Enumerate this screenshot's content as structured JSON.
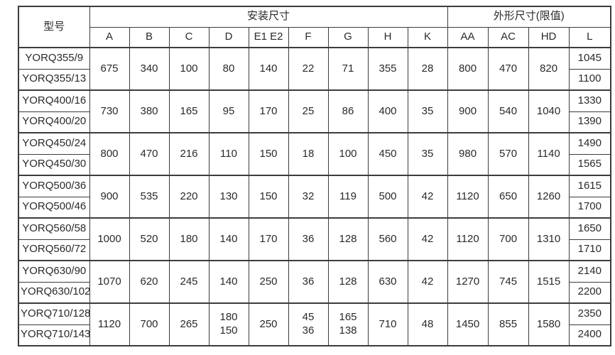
{
  "table": {
    "header": {
      "model_label": "型号",
      "install_group_label": "安装尺寸",
      "outline_group_label": "外形尺寸(限值)",
      "install_columns": [
        "A",
        "B",
        "C",
        "D",
        "E1 E2",
        "F",
        "G",
        "H",
        "K"
      ],
      "outline_columns": [
        "AA",
        "AC",
        "HD",
        "L"
      ]
    },
    "groups": [
      {
        "models": [
          "YORQ355/9",
          "YORQ355/13"
        ],
        "A": "675",
        "B": "340",
        "C": "100",
        "D": "80",
        "E1E2": "140",
        "F": "22",
        "G": "71",
        "H": "355",
        "K": "28",
        "AA": "800",
        "AC": "470",
        "HD": "820",
        "L": [
          "1045",
          "1100"
        ]
      },
      {
        "models": [
          "YORQ400/16",
          "YORQ400/20"
        ],
        "A": "730",
        "B": "380",
        "C": "165",
        "D": "95",
        "E1E2": "170",
        "F": "25",
        "G": "86",
        "H": "400",
        "K": "35",
        "AA": "900",
        "AC": "540",
        "HD": "1040",
        "L": [
          "1330",
          "1390"
        ]
      },
      {
        "models": [
          "YORQ450/24",
          "YORQ450/30"
        ],
        "A": "800",
        "B": "470",
        "C": "216",
        "D": "110",
        "E1E2": "150",
        "F": "18",
        "G": "100",
        "H": "450",
        "K": "35",
        "AA": "980",
        "AC": "570",
        "HD": "1140",
        "L": [
          "1490",
          "1565"
        ]
      },
      {
        "models": [
          "YORQ500/36",
          "YORQ500/46"
        ],
        "A": "900",
        "B": "535",
        "C": "220",
        "D": "130",
        "E1E2": "150",
        "F": "32",
        "G": "119",
        "H": "500",
        "K": "42",
        "AA": "1120",
        "AC": "650",
        "HD": "1260",
        "L": [
          "1615",
          "1700"
        ]
      },
      {
        "models": [
          "YORQ560/58",
          "YORQ560/72"
        ],
        "A": "1000",
        "B": "520",
        "C": "180",
        "D": "140",
        "E1E2": "170",
        "F": "36",
        "G": "128",
        "H": "560",
        "K": "42",
        "AA": "1120",
        "AC": "700",
        "HD": "1310",
        "L": [
          "1650",
          "1710"
        ]
      },
      {
        "models": [
          "YORQ630/90",
          "YORQ630/102"
        ],
        "A": "1070",
        "B": "620",
        "C": "245",
        "D": "140",
        "E1E2": "250",
        "F": "36",
        "G": "128",
        "H": "630",
        "K": "42",
        "AA": "1270",
        "AC": "745",
        "HD": "1515",
        "L": [
          "2140",
          "2200"
        ]
      },
      {
        "models": [
          "YORQ710/128",
          "YORQ710/143"
        ],
        "A": "1120",
        "B": "700",
        "C": "265",
        "D": "180\n150",
        "E1E2": "250",
        "F": "45\n36",
        "G": "165\n138",
        "H": "710",
        "K": "48",
        "AA": "1450",
        "AC": "855",
        "HD": "1580",
        "L": [
          "2350",
          "2400"
        ]
      }
    ]
  }
}
